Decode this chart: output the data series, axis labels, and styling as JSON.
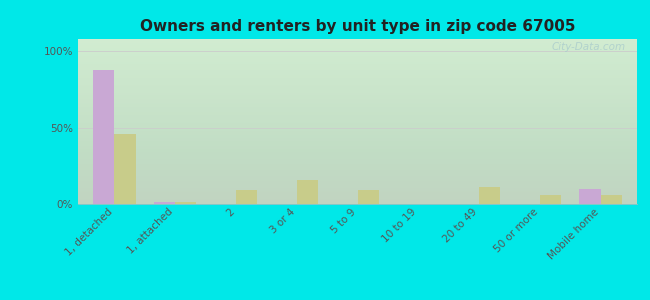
{
  "title": "Owners and renters by unit type in zip code 67005",
  "categories": [
    "1, detached",
    "1, attached",
    "2",
    "3 or 4",
    "5 to 9",
    "10 to 19",
    "20 to 49",
    "50 or more",
    "Mobile home"
  ],
  "owner_values": [
    88,
    1,
    0,
    0,
    0,
    0,
    0,
    0,
    10
  ],
  "renter_values": [
    46,
    1,
    9,
    16,
    9,
    0,
    11,
    6,
    6
  ],
  "owner_color": "#c9a8d4",
  "renter_color": "#c8cc8a",
  "background_color": "#00e8e8",
  "yticks": [
    0,
    50,
    100
  ],
  "ytick_labels": [
    "0%",
    "50%",
    "100%"
  ],
  "watermark": "City-Data.com",
  "title_fontsize": 11,
  "tick_fontsize": 7.5,
  "legend_fontsize": 8.5
}
